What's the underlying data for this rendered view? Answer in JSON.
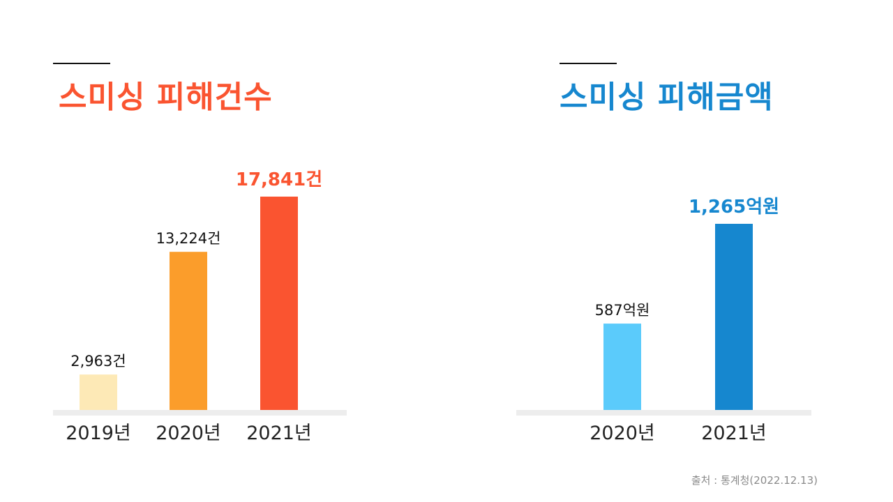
{
  "source_note": "출처 : 통계청(2022.12.13)",
  "chart_data": [
    {
      "type": "bar",
      "title": "스미싱 피해건수",
      "title_color": "#fa5430",
      "categories": [
        "2019년",
        "2020년",
        "2021년"
      ],
      "values": [
        2963,
        13224,
        17841
      ],
      "data_labels": [
        "2,963건",
        "13,224건",
        "17,841건"
      ],
      "bar_colors": [
        "#fde9b6",
        "#fb9d2b",
        "#fa5430"
      ],
      "label_colors": [
        "#111111",
        "#111111",
        "#fa5430"
      ],
      "highlight_index": 2,
      "ylim": [
        0,
        17841
      ],
      "grid": false
    },
    {
      "type": "bar",
      "title": "스미싱 피해금액",
      "title_color": "#1687cf",
      "categories": [
        "2020년",
        "2021년"
      ],
      "values": [
        587,
        1265
      ],
      "data_labels": [
        "587억원",
        "1,265억원"
      ],
      "bar_colors": [
        "#5bcbfb",
        "#1687cf"
      ],
      "label_colors": [
        "#111111",
        "#1687cf"
      ],
      "highlight_index": 1,
      "ylim": [
        0,
        1265
      ],
      "grid": false
    }
  ]
}
